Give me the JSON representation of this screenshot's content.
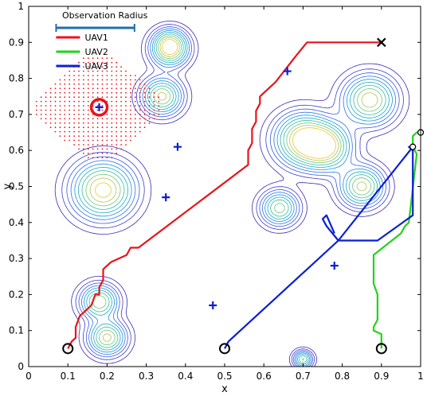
{
  "chart_data": {
    "type": "line",
    "title": "",
    "xlabel": "x",
    "ylabel": "y",
    "xlim": [
      0,
      1
    ],
    "ylim": [
      0,
      1
    ],
    "x_ticks": [
      "0",
      "0.1",
      "0.2",
      "0.3",
      "0.4",
      "0.5",
      "0.6",
      "0.7",
      "0.8",
      "0.9",
      "1"
    ],
    "y_ticks": [
      "0",
      "0.1",
      "0.2",
      "0.3",
      "0.4",
      "0.5",
      "0.6",
      "0.7",
      "0.8",
      "0.9",
      "1"
    ],
    "legend": {
      "placement": "top-left",
      "radius_label": "Observation Radius",
      "radius_color": "#1f6fb2",
      "observation_radius": 0.1
    },
    "series": [
      {
        "name": "UAV1",
        "color": "#e8141b",
        "points": [
          [
            0.1,
            0.05
          ],
          [
            0.11,
            0.07
          ],
          [
            0.12,
            0.08
          ],
          [
            0.12,
            0.11
          ],
          [
            0.13,
            0.14
          ],
          [
            0.15,
            0.16
          ],
          [
            0.16,
            0.17
          ],
          [
            0.17,
            0.2
          ],
          [
            0.18,
            0.2
          ],
          [
            0.18,
            0.22
          ],
          [
            0.19,
            0.24
          ],
          [
            0.19,
            0.27
          ],
          [
            0.21,
            0.29
          ],
          [
            0.25,
            0.31
          ],
          [
            0.26,
            0.33
          ],
          [
            0.28,
            0.33
          ],
          [
            0.56,
            0.56
          ],
          [
            0.56,
            0.6
          ],
          [
            0.57,
            0.62
          ],
          [
            0.57,
            0.66
          ],
          [
            0.58,
            0.68
          ],
          [
            0.58,
            0.71
          ],
          [
            0.59,
            0.73
          ],
          [
            0.59,
            0.75
          ],
          [
            0.62,
            0.78
          ],
          [
            0.63,
            0.79
          ],
          [
            0.68,
            0.86
          ],
          [
            0.71,
            0.9
          ],
          [
            0.9,
            0.9
          ]
        ]
      },
      {
        "name": "UAV2",
        "color": "#22d31c",
        "points": [
          [
            0.9,
            0.05
          ],
          [
            0.9,
            0.09
          ],
          [
            0.88,
            0.1
          ],
          [
            0.88,
            0.11
          ],
          [
            0.89,
            0.13
          ],
          [
            0.89,
            0.2
          ],
          [
            0.88,
            0.23
          ],
          [
            0.88,
            0.31
          ],
          [
            0.95,
            0.37
          ],
          [
            0.96,
            0.39
          ],
          [
            0.97,
            0.4
          ],
          [
            0.99,
            0.59
          ],
          [
            0.98,
            0.61
          ],
          [
            0.98,
            0.64
          ],
          [
            0.99,
            0.65
          ],
          [
            1.0,
            0.65
          ]
        ]
      },
      {
        "name": "UAV3",
        "color": "#0a1fd4",
        "points": [
          [
            0.5,
            0.05
          ],
          [
            0.51,
            0.07
          ],
          [
            0.53,
            0.09
          ],
          [
            0.79,
            0.35
          ],
          [
            0.89,
            0.35
          ],
          [
            0.98,
            0.42
          ],
          [
            0.98,
            0.6
          ],
          [
            0.97,
            0.61
          ],
          [
            0.98,
            0.61
          ],
          [
            0.79,
            0.35
          ],
          [
            0.76,
            0.39
          ],
          [
            0.75,
            0.41
          ],
          [
            0.76,
            0.42
          ],
          [
            0.78,
            0.37
          ]
        ]
      }
    ],
    "start_points": [
      [
        0.1,
        0.05
      ],
      [
        0.5,
        0.05
      ],
      [
        0.9,
        0.05
      ]
    ],
    "end_points": [
      [
        0.98,
        0.61
      ],
      [
        1.0,
        0.65
      ]
    ],
    "end_cross": [
      0.9,
      0.9
    ],
    "targets": [
      [
        0.18,
        0.72
      ],
      [
        0.38,
        0.61
      ],
      [
        0.35,
        0.47
      ],
      [
        0.66,
        0.82
      ],
      [
        0.78,
        0.28
      ],
      [
        0.47,
        0.17
      ]
    ],
    "highlighted_target": {
      "x": 0.18,
      "y": 0.72,
      "ring_radius": 0.016,
      "ring_color": "#e8141b"
    },
    "observation_area": {
      "center": [
        0.18,
        0.72
      ],
      "x_range": [
        0.02,
        0.34
      ],
      "y_range": [
        0.58,
        0.86
      ],
      "dot_color": "#e8141b"
    },
    "contour_peaks": [
      {
        "x": 0.19,
        "y": 0.49,
        "sx": 0.05,
        "sy": 0.05,
        "a": 1.0
      },
      {
        "x": 0.36,
        "y": 0.88,
        "sx": 0.03,
        "sy": 0.03,
        "a": 0.85
      },
      {
        "x": 0.36,
        "y": 0.9,
        "sx": 0.025,
        "sy": 0.025,
        "a": 0.4
      },
      {
        "x": 0.34,
        "y": 0.75,
        "sx": 0.032,
        "sy": 0.032,
        "a": 0.85
      },
      {
        "x": 0.87,
        "y": 0.74,
        "sx": 0.042,
        "sy": 0.042,
        "a": 0.9
      },
      {
        "x": 0.7,
        "y": 0.63,
        "sx": 0.045,
        "sy": 0.045,
        "a": 1.0
      },
      {
        "x": 0.76,
        "y": 0.61,
        "sx": 0.04,
        "sy": 0.04,
        "a": 0.9
      },
      {
        "x": 0.85,
        "y": 0.5,
        "sx": 0.035,
        "sy": 0.035,
        "a": 0.85
      },
      {
        "x": 0.64,
        "y": 0.44,
        "sx": 0.03,
        "sy": 0.03,
        "a": 0.75
      },
      {
        "x": 0.18,
        "y": 0.18,
        "sx": 0.03,
        "sy": 0.03,
        "a": 0.8
      },
      {
        "x": 0.2,
        "y": 0.08,
        "sx": 0.03,
        "sy": 0.03,
        "a": 0.85
      },
      {
        "x": 0.7,
        "y": 0.02,
        "sx": 0.015,
        "sy": 0.015,
        "a": 0.7
      }
    ],
    "contour_levels": [
      0.05,
      0.11,
      0.18,
      0.26,
      0.35,
      0.45,
      0.56,
      0.68,
      0.8,
      0.92
    ],
    "contour_colors": [
      "#3b28b4",
      "#3e3cc9",
      "#3757df",
      "#2a74e8",
      "#1a92db",
      "#17abc4",
      "#30bfa0",
      "#6cc878",
      "#b3c54f",
      "#ecc52d"
    ],
    "grid": false
  }
}
